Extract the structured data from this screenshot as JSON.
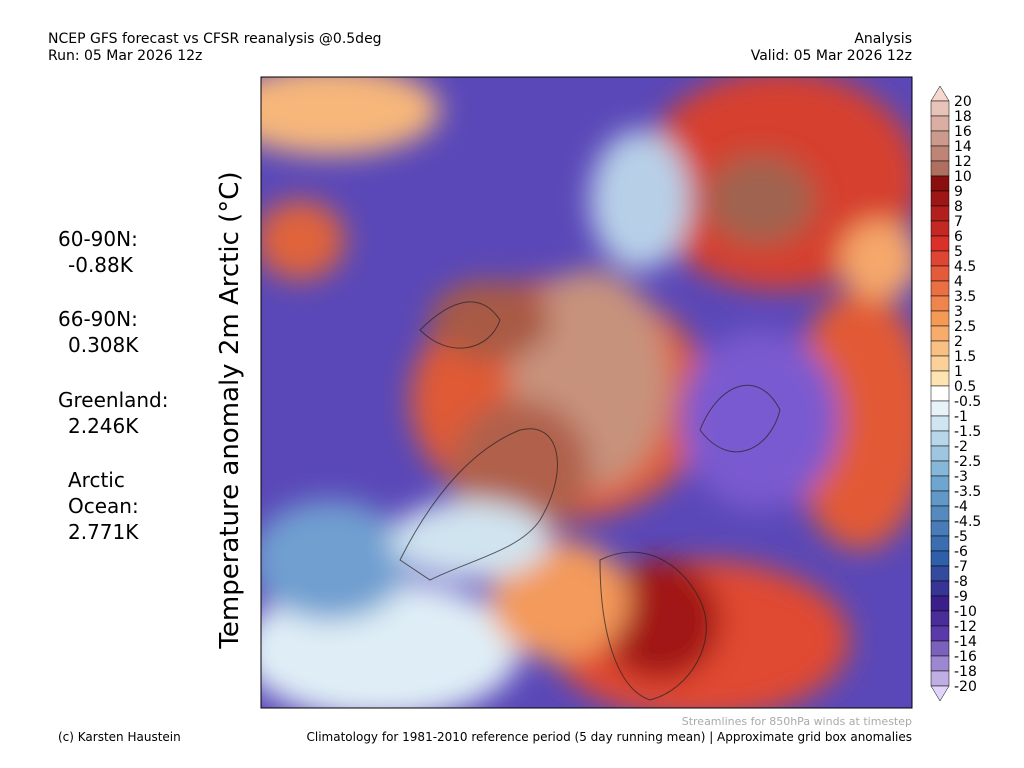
{
  "header": {
    "title": "NCEP GFS forecast vs CFSR reanalysis @0.5deg",
    "run": "Run: 05 Mar 2026 12z",
    "kind": "Analysis",
    "valid": "Valid: 05 Mar 2026 12z"
  },
  "axis_label": "Temperature anomaly 2m Arctic (°C)",
  "stats": [
    {
      "label": "60-90N:",
      "value": "-0.88K"
    },
    {
      "label": "66-90N:",
      "value": "0.308K"
    },
    {
      "label": "Greenland:",
      "value": "2.246K"
    },
    {
      "label": "Arctic Ocean:",
      "value": "2.771K"
    }
  ],
  "colorbar": {
    "labels": [
      "20",
      "18",
      "16",
      "14",
      "12",
      "10",
      "9",
      "8",
      "7",
      "6",
      "5",
      "4.5",
      "4",
      "3.5",
      "3",
      "2.5",
      "2",
      "1.5",
      "1",
      "0.5",
      "-0.5",
      "-1",
      "-1.5",
      "-2",
      "-2.5",
      "-3",
      "-3.5",
      "-4",
      "-4.5",
      "-5",
      "-6",
      "-7",
      "-8",
      "-9",
      "-10",
      "-12",
      "-14",
      "-16",
      "-18",
      "-20"
    ]
  },
  "footer": {
    "streamlines": "Streamlines for 850hPa winds at timestep",
    "credit": "(c) Karsten Haustein",
    "climatology": "Climatology for 1981-2010 reference period (5 day running mean) | Approximate grid box anomalies"
  }
}
